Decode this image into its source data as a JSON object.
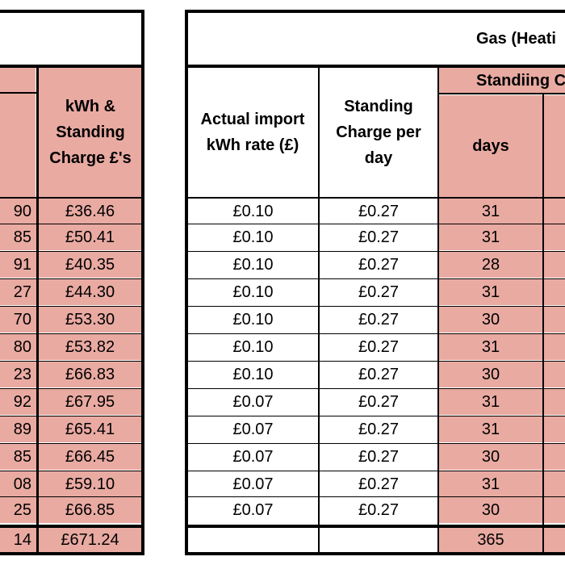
{
  "left_table": {
    "header": "kWh & Standing Charge £'s",
    "partial_values": [
      "90",
      "85",
      "91",
      "27",
      "70",
      "80",
      "23",
      "92",
      "89",
      "85",
      "08",
      "25"
    ],
    "totals_values": [
      "£36.46",
      "£50.41",
      "£40.35",
      "£44.30",
      "£53.30",
      "£53.82",
      "£66.83",
      "£67.95",
      "£65.41",
      "£66.45",
      "£59.10",
      "£66.85"
    ],
    "partial_total": "14",
    "grand_total": "£671.24"
  },
  "gas_table": {
    "title": "Gas (Heati",
    "col_import_rate": "Actual import kWh rate (£)",
    "col_standing": "Standing Charge per day",
    "group_standing": "Standiing C",
    "col_days": "days",
    "rates": [
      "£0.10",
      "£0.10",
      "£0.10",
      "£0.10",
      "£0.10",
      "£0.10",
      "£0.10",
      "£0.07",
      "£0.07",
      "£0.07",
      "£0.07",
      "£0.07"
    ],
    "standing": [
      "£0.27",
      "£0.27",
      "£0.27",
      "£0.27",
      "£0.27",
      "£0.27",
      "£0.27",
      "£0.27",
      "£0.27",
      "£0.27",
      "£0.27",
      "£0.27"
    ],
    "days": [
      "31",
      "31",
      "28",
      "31",
      "30",
      "31",
      "30",
      "31",
      "31",
      "30",
      "31",
      "30"
    ],
    "days_total": "365"
  },
  "colors": {
    "header_fill": "#e9aaa2",
    "border": "#000000"
  }
}
